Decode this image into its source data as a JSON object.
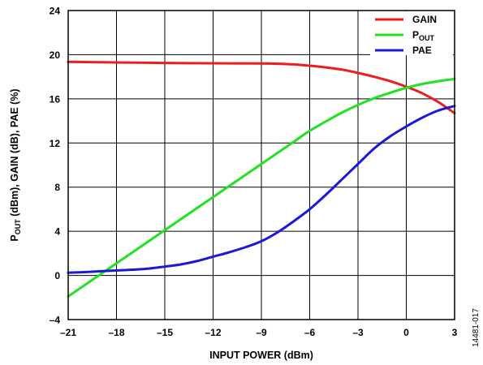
{
  "chart_data": {
    "type": "line",
    "xlabel": "INPUT POWER (dBm)",
    "ylabel_parts": [
      "P",
      "OUT",
      " (dBm), GAIN (dB), PAE (%)"
    ],
    "xlim": [
      -21,
      3
    ],
    "ylim": [
      -4,
      24
    ],
    "x_ticks": [
      -21,
      -18,
      -15,
      -12,
      -9,
      -6,
      -3,
      0,
      3
    ],
    "x_tick_labels": [
      "–21",
      "–18",
      "–15",
      "–12",
      "–9",
      "–6",
      "–3",
      "0",
      "3"
    ],
    "y_ticks": [
      -4,
      0,
      4,
      8,
      12,
      16,
      20,
      24
    ],
    "y_tick_labels": [
      "–4",
      "0",
      "4",
      "8",
      "12",
      "16",
      "20",
      "24"
    ],
    "grid": true,
    "legend_position": "top-right",
    "series": [
      {
        "name": "GAIN",
        "color": "#ee1c1c",
        "x": [
          -21,
          -18,
          -15,
          -12,
          -9,
          -8,
          -7,
          -6,
          -5,
          -4,
          -3,
          -2,
          -1,
          0,
          1,
          2,
          3
        ],
        "y": [
          19.35,
          19.3,
          19.25,
          19.22,
          19.2,
          19.18,
          19.12,
          19.0,
          18.85,
          18.65,
          18.35,
          18.0,
          17.6,
          17.1,
          16.5,
          15.7,
          14.7
        ]
      },
      {
        "name_parts": [
          "P",
          "OUT"
        ],
        "color": "#22e022",
        "x": [
          -21,
          -18,
          -15,
          -12,
          -9,
          -8,
          -7,
          -6,
          -5,
          -4,
          -3,
          -2,
          -1,
          0,
          1,
          2,
          3
        ],
        "y": [
          -1.9,
          1.1,
          4.1,
          7.1,
          10.1,
          11.1,
          12.1,
          13.1,
          13.95,
          14.75,
          15.45,
          16.05,
          16.55,
          17.0,
          17.35,
          17.6,
          17.8
        ]
      },
      {
        "name": "PAE",
        "color": "#1a1ad6",
        "x": [
          -21,
          -20,
          -19,
          -18,
          -17,
          -16,
          -15,
          -14,
          -13,
          -12,
          -11,
          -10,
          -9,
          -8,
          -7,
          -6,
          -5,
          -4,
          -3,
          -2,
          -1,
          0,
          1,
          2,
          3
        ],
        "y": [
          0.25,
          0.3,
          0.38,
          0.45,
          0.52,
          0.62,
          0.8,
          1.0,
          1.3,
          1.7,
          2.1,
          2.55,
          3.1,
          3.9,
          4.9,
          6.0,
          7.3,
          8.7,
          10.1,
          11.5,
          12.6,
          13.5,
          14.3,
          14.95,
          15.35
        ]
      }
    ]
  },
  "figure_id": "14481-017"
}
